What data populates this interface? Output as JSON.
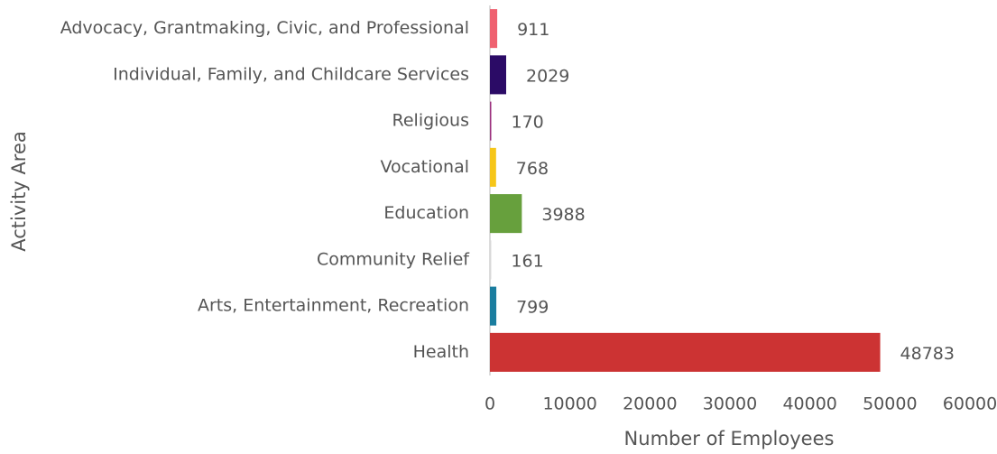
{
  "chart_data": {
    "type": "bar",
    "orientation": "horizontal",
    "categories": [
      "Advocacy, Grantmaking, Civic, and Professional",
      "Individual, Family, and Childcare Services",
      "Religious",
      "Vocational",
      "Education",
      "Community Relief",
      "Arts, Entertainment, Recreation",
      "Health"
    ],
    "values": [
      911,
      2029,
      170,
      768,
      3988,
      161,
      799,
      48783
    ],
    "colors": [
      "#ef6170",
      "#2b0b66",
      "#9b2f7d",
      "#f6c619",
      "#67a03d",
      "#d8d8d8",
      "#1a7d9f",
      "#cc3333"
    ],
    "xlim": [
      0,
      60000
    ],
    "xticks": [
      0,
      10000,
      20000,
      30000,
      40000,
      50000,
      60000
    ],
    "xlabel": "Number of Employees",
    "ylabel": "Activity Area"
  }
}
